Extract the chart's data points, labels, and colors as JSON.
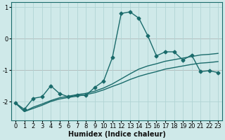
{
  "xlabel": "Humidex (Indice chaleur)",
  "background_color": "#cfe9e9",
  "grid_color": "#b0d4d4",
  "line_color": "#1a6b6b",
  "xlim": [
    -0.5,
    23.5
  ],
  "ylim": [
    -2.6,
    1.15
  ],
  "yticks": [
    -2,
    -1,
    0,
    1
  ],
  "xticks": [
    0,
    1,
    2,
    3,
    4,
    5,
    6,
    7,
    8,
    9,
    10,
    11,
    12,
    13,
    14,
    15,
    16,
    17,
    18,
    19,
    20,
    21,
    22,
    23
  ],
  "red_hline_y": [
    0,
    -1
  ],
  "series1_x": [
    0,
    1,
    2,
    3,
    4,
    5,
    6,
    7,
    8,
    9,
    10,
    11,
    12,
    13,
    14,
    15,
    16,
    17,
    18,
    19,
    20,
    21,
    22,
    23
  ],
  "series1_y": [
    -2.05,
    -2.25,
    -1.9,
    -1.85,
    -1.5,
    -1.75,
    -1.85,
    -1.8,
    -1.8,
    -1.55,
    -1.35,
    -0.6,
    0.8,
    0.85,
    0.65,
    0.1,
    -0.55,
    -0.42,
    -0.42,
    -0.68,
    -0.52,
    -1.05,
    -1.02,
    -1.08
  ],
  "series2_x": [
    0,
    1,
    2,
    3,
    4,
    5,
    6,
    7,
    8,
    9,
    10,
    11,
    12,
    13,
    14,
    15,
    16,
    17,
    18,
    19,
    20,
    21,
    22,
    23
  ],
  "series2_y": [
    -2.05,
    -2.32,
    -2.22,
    -2.12,
    -2.0,
    -1.92,
    -1.87,
    -1.83,
    -1.78,
    -1.72,
    -1.63,
    -1.52,
    -1.42,
    -1.3,
    -1.2,
    -1.12,
    -1.05,
    -0.97,
    -0.92,
    -0.87,
    -0.82,
    -0.78,
    -0.76,
    -0.73
  ],
  "series3_x": [
    0,
    1,
    2,
    3,
    4,
    5,
    6,
    7,
    8,
    9,
    10,
    11,
    12,
    13,
    14,
    15,
    16,
    17,
    18,
    19,
    20,
    21,
    22,
    23
  ],
  "series3_y": [
    -2.05,
    -2.32,
    -2.18,
    -2.08,
    -1.97,
    -1.88,
    -1.83,
    -1.78,
    -1.74,
    -1.67,
    -1.57,
    -1.44,
    -1.28,
    -1.12,
    -0.97,
    -0.87,
    -0.8,
    -0.72,
    -0.67,
    -0.62,
    -0.57,
    -0.52,
    -0.5,
    -0.47
  ],
  "xlabel_fontsize": 7,
  "tick_fontsize": 6,
  "linewidth": 1.0,
  "markersize": 2.5
}
